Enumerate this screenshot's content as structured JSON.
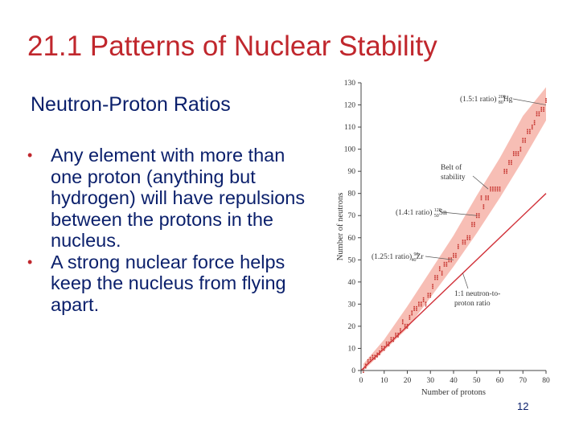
{
  "slide": {
    "title": "21.1  Patterns of Nuclear Stability",
    "subtitle": "Neutron-Proton Ratios",
    "bullets": [
      "Any element with more than one proton (anything but hydrogen) will have repulsions between the protons in the nucleus.",
      "A strong nuclear force helps keep the nucleus from flying apart."
    ],
    "page_number": "12"
  },
  "colors": {
    "title": "#c0272d",
    "body_text": "#0a1f6b",
    "bullet_marker": "#c0272d",
    "belt_fill": "#f6b3a8",
    "nuclide_dots": "#c4302b",
    "line_1_to_1": "#d1323a"
  },
  "chart_data": {
    "type": "scatter",
    "xlabel": "Number of protons",
    "ylabel": "Number of neutrons",
    "xlim": [
      0,
      80
    ],
    "ylim": [
      0,
      130
    ],
    "x_ticks": [
      "0",
      "10",
      "20",
      "30",
      "40",
      "50",
      "60",
      "70",
      "80"
    ],
    "y_ticks": [
      "0",
      "10",
      "20",
      "30",
      "40",
      "50",
      "60",
      "70",
      "80",
      "90",
      "100",
      "110",
      "120",
      "130"
    ],
    "grid": false,
    "band": {
      "name": "Belt of stability",
      "lower": [
        [
          1,
          0
        ],
        [
          10,
          9
        ],
        [
          20,
          19
        ],
        [
          30,
          33
        ],
        [
          40,
          47
        ],
        [
          50,
          62
        ],
        [
          60,
          78
        ],
        [
          70,
          95
        ],
        [
          80,
          113
        ]
      ],
      "upper": [
        [
          1,
          3
        ],
        [
          10,
          14
        ],
        [
          20,
          29
        ],
        [
          30,
          45
        ],
        [
          40,
          61
        ],
        [
          50,
          79
        ],
        [
          60,
          96
        ],
        [
          70,
          115
        ],
        [
          80,
          128
        ]
      ]
    },
    "reference_line": {
      "name": "1:1 neutron-to-proton ratio",
      "points": [
        [
          0,
          0
        ],
        [
          80,
          80
        ]
      ]
    },
    "stable_nuclides": [
      [
        1,
        0
      ],
      [
        2,
        2
      ],
      [
        3,
        4
      ],
      [
        4,
        5
      ],
      [
        5,
        6
      ],
      [
        6,
        6
      ],
      [
        7,
        7
      ],
      [
        8,
        8
      ],
      [
        9,
        10
      ],
      [
        10,
        10
      ],
      [
        11,
        12
      ],
      [
        12,
        12
      ],
      [
        13,
        14
      ],
      [
        14,
        14
      ],
      [
        15,
        16
      ],
      [
        16,
        16
      ],
      [
        17,
        18
      ],
      [
        18,
        22
      ],
      [
        19,
        20
      ],
      [
        20,
        20
      ],
      [
        21,
        24
      ],
      [
        22,
        26
      ],
      [
        23,
        28
      ],
      [
        24,
        28
      ],
      [
        25,
        30
      ],
      [
        26,
        30
      ],
      [
        27,
        32
      ],
      [
        28,
        30
      ],
      [
        29,
        34
      ],
      [
        30,
        34
      ],
      [
        31,
        38
      ],
      [
        32,
        42
      ],
      [
        33,
        42
      ],
      [
        34,
        46
      ],
      [
        35,
        44
      ],
      [
        36,
        48
      ],
      [
        37,
        48
      ],
      [
        38,
        50
      ],
      [
        39,
        50
      ],
      [
        40,
        52
      ],
      [
        41,
        52
      ],
      [
        42,
        56
      ],
      [
        44,
        58
      ],
      [
        45,
        58
      ],
      [
        46,
        60
      ],
      [
        47,
        60
      ],
      [
        48,
        66
      ],
      [
        49,
        66
      ],
      [
        50,
        70
      ],
      [
        51,
        70
      ],
      [
        52,
        78
      ],
      [
        53,
        74
      ],
      [
        54,
        78
      ],
      [
        55,
        78
      ],
      [
        56,
        82
      ],
      [
        57,
        82
      ],
      [
        58,
        82
      ],
      [
        59,
        82
      ],
      [
        60,
        82
      ],
      [
        62,
        90
      ],
      [
        63,
        90
      ],
      [
        64,
        94
      ],
      [
        65,
        94
      ],
      [
        66,
        98
      ],
      [
        67,
        98
      ],
      [
        68,
        98
      ],
      [
        69,
        100
      ],
      [
        70,
        104
      ],
      [
        71,
        104
      ],
      [
        72,
        108
      ],
      [
        73,
        108
      ],
      [
        74,
        110
      ],
      [
        75,
        112
      ],
      [
        76,
        116
      ],
      [
        77,
        116
      ],
      [
        78,
        118
      ],
      [
        79,
        118
      ],
      [
        80,
        122
      ]
    ],
    "annotations": [
      {
        "ratio_text": "(1.5:1 ratio)",
        "mass_number": "200",
        "atomic_number": "80",
        "symbol": "Hg",
        "point": [
          80,
          120
        ]
      },
      {
        "ratio_text": "(1.4:1 ratio)",
        "mass_number": "120",
        "atomic_number": "50",
        "symbol": "Sn",
        "point": [
          50,
          70
        ]
      },
      {
        "ratio_text": "(1.25:1 ratio)",
        "mass_number": "90",
        "atomic_number": "40",
        "symbol": "Zr",
        "point": [
          40,
          50
        ]
      }
    ],
    "labels": {
      "belt_line1": "Belt of",
      "belt_line2": "stability",
      "belt_point": [
        55,
        82
      ],
      "ratio_line1": "1:1 neutron-to-",
      "ratio_line2": "proton ratio",
      "ratio_point": [
        44,
        44
      ]
    }
  }
}
